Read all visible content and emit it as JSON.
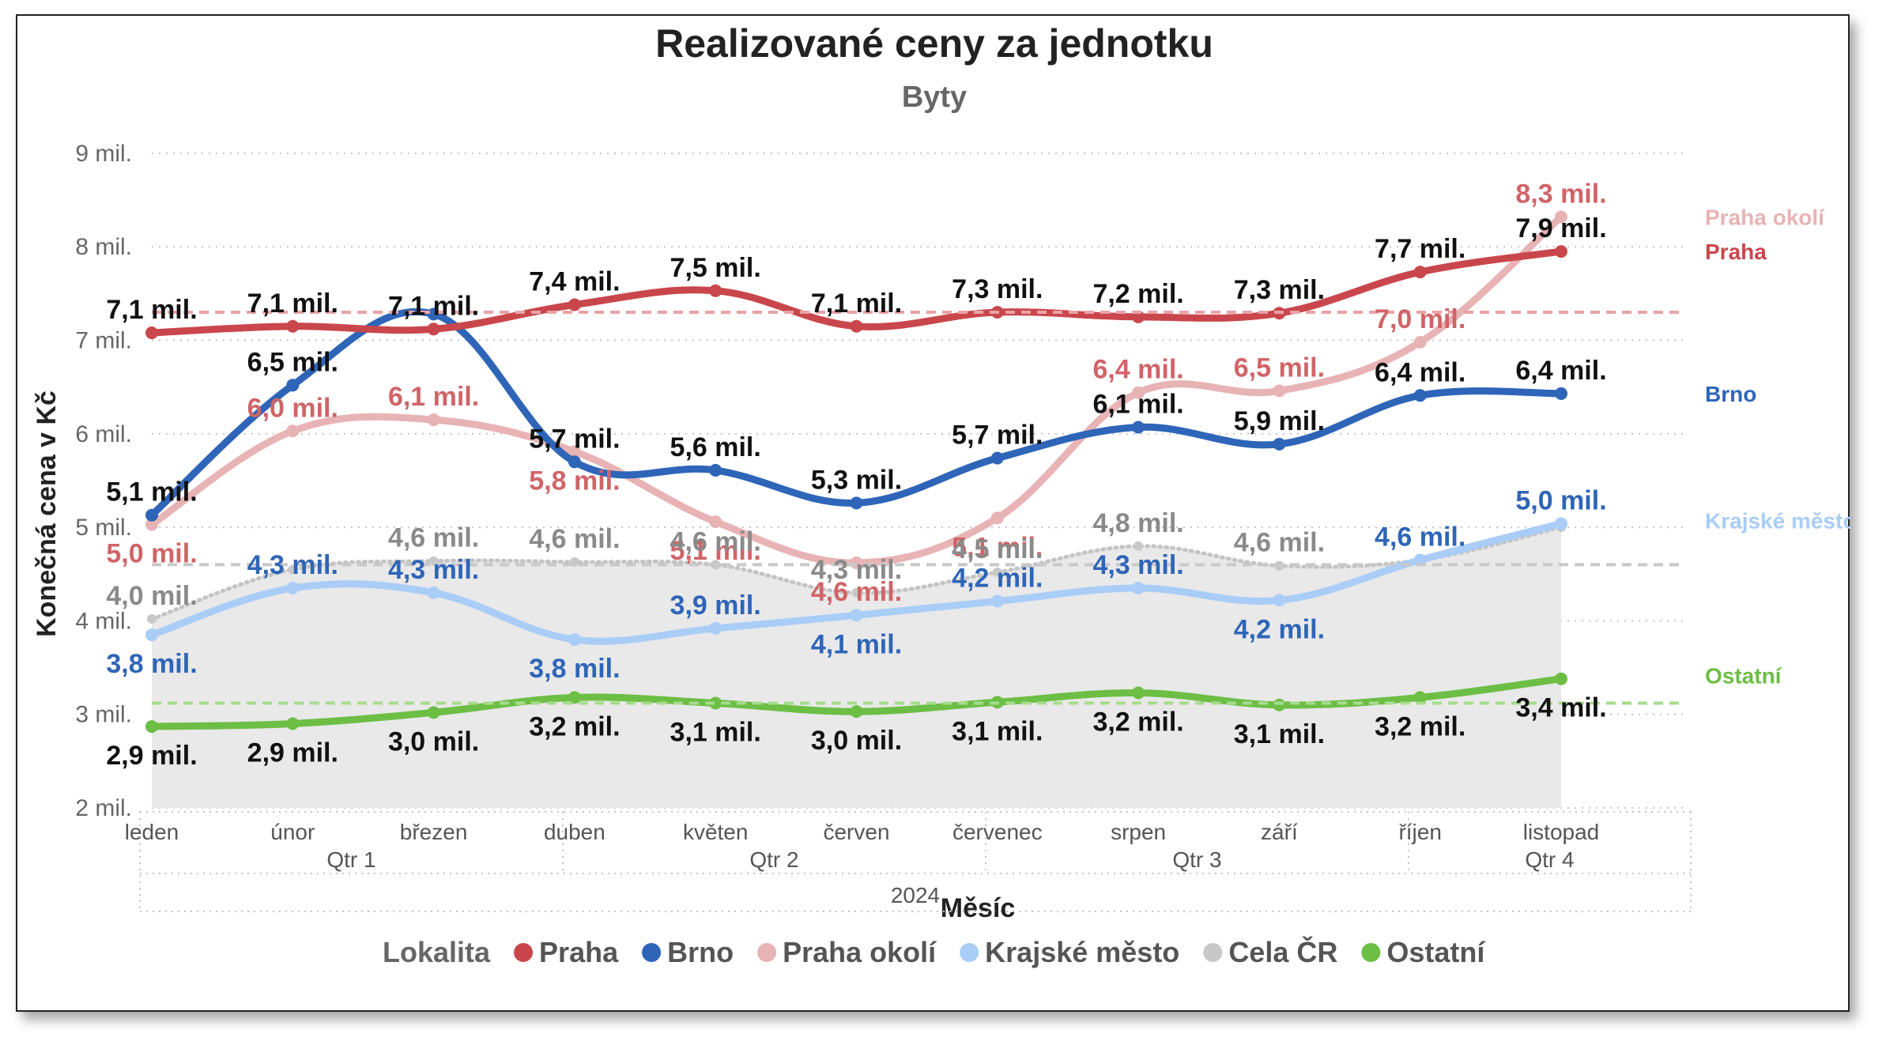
{
  "chart_data": {
    "type": "line",
    "title": "Realizované ceny za jednotku",
    "subtitle": "Byty",
    "xlabel": "Měsíc",
    "ylabel": "Konečná cena v Kč",
    "ylim": [
      2,
      9
    ],
    "y_ticks": [
      {
        "value": 2,
        "label": "2 mil."
      },
      {
        "value": 3,
        "label": "3 mil."
      },
      {
        "value": 4,
        "label": "4 mil."
      },
      {
        "value": 5,
        "label": "5 mil."
      },
      {
        "value": 6,
        "label": "6 mil."
      },
      {
        "value": 7,
        "label": "7 mil."
      },
      {
        "value": 8,
        "label": "8 mil."
      },
      {
        "value": 9,
        "label": "9 mil."
      }
    ],
    "grid": true,
    "categories": [
      "leden",
      "únor",
      "březen",
      "duben",
      "květen",
      "červen",
      "červenec",
      "srpen",
      "září",
      "říjen",
      "listopad"
    ],
    "quarters": [
      "Qtr 1",
      "Qtr 2",
      "Qtr 3",
      "Qtr 4"
    ],
    "year": "2024",
    "legend_title": "Lokalita",
    "legend_position": "bottom",
    "series": [
      {
        "name": "Praha",
        "color": "#c9474c",
        "end_label": "Praha",
        "values": [
          7.08,
          7.15,
          7.12,
          7.38,
          7.53,
          7.15,
          7.3,
          7.25,
          7.29,
          7.73,
          7.95
        ],
        "labels": [
          "7,1 mil.",
          "7,1 mil.",
          "7,1 mil.",
          "7,4 mil.",
          "7,5 mil.",
          "7,1 mil.",
          "7,3 mil.",
          "7,2 mil.",
          "7,3 mil.",
          "7,7 mil.",
          "7,9 mil."
        ],
        "label_color": "#111111",
        "label_pos": [
          "above",
          "above",
          "above",
          "above",
          "above",
          "above",
          "above",
          "above",
          "above",
          "above",
          "above"
        ]
      },
      {
        "name": "Brno",
        "color": "#2e65b8",
        "end_label": "Brno",
        "values": [
          5.13,
          6.52,
          7.28,
          5.7,
          5.61,
          5.26,
          5.74,
          6.07,
          5.89,
          6.41,
          6.43
        ],
        "labels": [
          "5,1 mil.",
          "6,5 mil.",
          "",
          "5,7 mil.",
          "5,6 mil.",
          "5,3 mil.",
          "5,7 mil.",
          "6,1 mil.",
          "5,9 mil.",
          "6,4 mil.",
          "6,4 mil."
        ],
        "label_color": "#111111",
        "label_pos": [
          "above",
          "above",
          "above",
          "above",
          "above",
          "above",
          "above",
          "above",
          "above",
          "above",
          "above"
        ]
      },
      {
        "name": "Praha okolí",
        "color": "#e8b3b5",
        "end_label": "Praha okolí",
        "values": [
          5.03,
          6.03,
          6.15,
          5.81,
          5.06,
          4.62,
          5.1,
          6.44,
          6.46,
          6.98,
          8.32
        ],
        "labels": [
          "5,0 mil.",
          "6,0 mil.",
          "6,1 mil.",
          "5,8 mil.",
          "5,1 mil.",
          "4,6 mil.",
          "5,1 mil.",
          "6,4 mil.",
          "6,5 mil.",
          "7,0 mil.",
          "8,3 mil."
        ],
        "label_color": "#d06468",
        "label_pos": [
          "below",
          "above",
          "above",
          "below",
          "below",
          "below",
          "below",
          "above",
          "above",
          "above",
          "above"
        ]
      },
      {
        "name": "Krajské město",
        "color": "#a9cdf7",
        "end_label": "Krajské město",
        "values": [
          3.85,
          4.35,
          4.3,
          3.8,
          3.92,
          4.06,
          4.21,
          4.35,
          4.22,
          4.65,
          5.04
        ],
        "labels": [
          "3,8 mil.",
          "4,3 mil.",
          "4,3 mil.",
          "3,8 mil.",
          "3,9 mil.",
          "4,1 mil.",
          "4,2 mil.",
          "4,3 mil.",
          "4,2 mil.",
          "4,6 mil.",
          "5,0 mil."
        ],
        "label_color": "#2e65b8",
        "label_pos": [
          "below",
          "above",
          "above",
          "below",
          "above",
          "below",
          "above",
          "above",
          "below",
          "above",
          "above"
        ]
      },
      {
        "name": "Cela ČR",
        "color": "#c8c8c8",
        "end_label": "",
        "area": true,
        "dotted": true,
        "values": [
          4.02,
          4.55,
          4.64,
          4.63,
          4.6,
          4.3,
          4.52,
          4.8,
          4.59,
          4.65,
          5.0
        ],
        "labels": [
          "4,0 mil.",
          "",
          "4,6 mil.",
          "4,6 mil.",
          "4,6 mil.",
          "4,3 mil.",
          "4,5 mil.",
          "4,8 mil.",
          "4,6 mil.",
          "",
          ""
        ],
        "label_color": "#8a8a8a",
        "label_pos": [
          "above",
          "above",
          "above",
          "above",
          "above",
          "above",
          "above",
          "above",
          "above",
          "above",
          "above"
        ]
      },
      {
        "name": "Ostatní",
        "color": "#6cbe45",
        "end_label": "Ostatní",
        "values": [
          2.87,
          2.9,
          3.02,
          3.18,
          3.12,
          3.03,
          3.13,
          3.23,
          3.1,
          3.18,
          3.38
        ],
        "labels": [
          "2,9 mil.",
          "2,9 mil.",
          "3,0 mil.",
          "3,2 mil.",
          "3,1 mil.",
          "3,0 mil.",
          "3,1 mil.",
          "3,2 mil.",
          "3,1 mil.",
          "3,2 mil.",
          "3,4 mil."
        ],
        "label_color": "#111111",
        "label_pos": [
          "below",
          "below",
          "below",
          "below",
          "below",
          "below",
          "below",
          "below",
          "below",
          "below",
          "below"
        ]
      }
    ],
    "reference_lines": [
      {
        "value": 7.3,
        "color": "#e8a3a6"
      },
      {
        "value": 4.6,
        "color": "#c8c8c8"
      },
      {
        "value": 3.12,
        "color": "#a6dc8c"
      }
    ]
  }
}
